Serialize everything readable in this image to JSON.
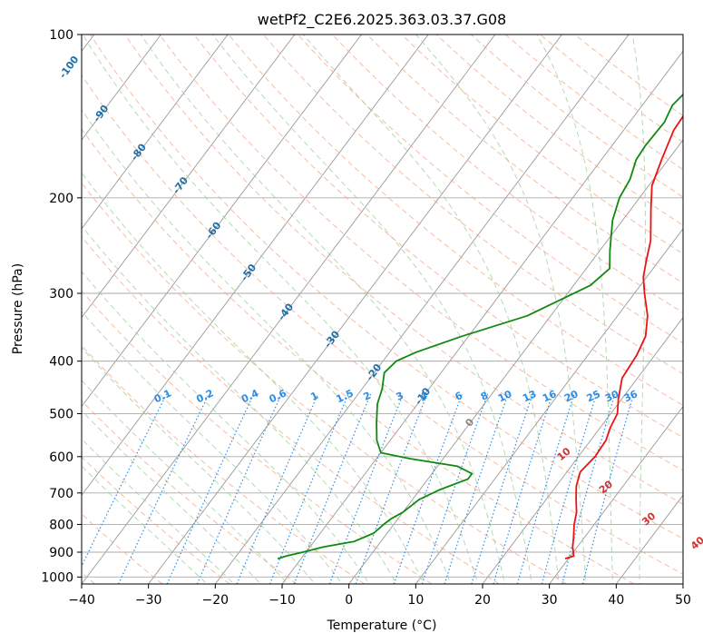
{
  "chart_data": {
    "type": "skew-t",
    "title": "wetPf2_C2E6.2025.363.03.37.G08",
    "xlabel": "Temperature (°C)",
    "ylabel": "Pressure (hPa)",
    "xlim": [
      -40,
      50
    ],
    "ylim": [
      1030,
      100
    ],
    "x_ticks": [
      -40,
      -30,
      -20,
      -10,
      0,
      10,
      20,
      30,
      40,
      50
    ],
    "y_ticks": [
      100,
      200,
      300,
      400,
      500,
      600,
      700,
      800,
      900,
      1000
    ],
    "grid": true,
    "colors": {
      "temperature": "#ee1111",
      "dewpoint": "#118811",
      "isotherm": "#999999",
      "dry_adiabat": "#f4a582",
      "moist_adiabat": "#9ccc9c",
      "mixing_ratio": "#2a8ee8",
      "moist_label": "#1f6fa8",
      "dry_label": "#d33030",
      "dry_label_zero": "#888888",
      "mixing_label": "#2a8ee8"
    },
    "temperature_profile": [
      [
        100,
        2.5
      ],
      [
        105,
        -1
      ],
      [
        110,
        -2.5
      ],
      [
        125,
        -3
      ],
      [
        150,
        -2.5
      ],
      [
        170,
        -1
      ],
      [
        190,
        0.5
      ],
      [
        210,
        3
      ],
      [
        240,
        6.5
      ],
      [
        260,
        8
      ],
      [
        280,
        9.5
      ],
      [
        300,
        11.5
      ],
      [
        330,
        14.5
      ],
      [
        360,
        16.5
      ],
      [
        390,
        17.3
      ],
      [
        430,
        17.7
      ],
      [
        470,
        19.5
      ],
      [
        500,
        21
      ],
      [
        530,
        21.5
      ],
      [
        560,
        22.3
      ],
      [
        600,
        22.5
      ],
      [
        640,
        22
      ],
      [
        680,
        23
      ],
      [
        720,
        24.5
      ],
      [
        760,
        26
      ],
      [
        800,
        27
      ],
      [
        850,
        28.5
      ],
      [
        880,
        29.3
      ],
      [
        900,
        30
      ],
      [
        915,
        30.5
      ],
      [
        925,
        29.5
      ]
    ],
    "dewpoint_profile": [
      [
        100,
        -5
      ],
      [
        110,
        -4.5
      ],
      [
        120,
        -4.5
      ],
      [
        135,
        -5.5
      ],
      [
        145,
        -4.8
      ],
      [
        160,
        -5
      ],
      [
        170,
        -4.8
      ],
      [
        185,
        -3.5
      ],
      [
        200,
        -3
      ],
      [
        220,
        -1.5
      ],
      [
        250,
        1.5
      ],
      [
        270,
        3.5
      ],
      [
        290,
        2.5
      ],
      [
        330,
        -3.5
      ],
      [
        360,
        -11
      ],
      [
        385,
        -16
      ],
      [
        400,
        -18
      ],
      [
        420,
        -18.5
      ],
      [
        450,
        -17
      ],
      [
        480,
        -16
      ],
      [
        520,
        -14
      ],
      [
        560,
        -12
      ],
      [
        590,
        -10
      ],
      [
        605,
        -5
      ],
      [
        625,
        3
      ],
      [
        645,
        6
      ],
      [
        660,
        6
      ],
      [
        690,
        3
      ],
      [
        720,
        1
      ],
      [
        760,
        0
      ],
      [
        780,
        -1
      ],
      [
        800,
        -1.5
      ],
      [
        830,
        -2
      ],
      [
        860,
        -4
      ],
      [
        880,
        -8
      ],
      [
        900,
        -10.5
      ],
      [
        915,
        -12.5
      ],
      [
        925,
        -13.5
      ]
    ],
    "isotherm_labels": [
      "-100",
      "-90",
      "-80",
      "-70",
      "-60",
      "-50",
      "-40",
      "-30",
      "-20",
      "-10",
      "0"
    ],
    "isotherm_label_temps": [
      -100,
      -90,
      -80,
      -70,
      -60,
      -50,
      -40,
      -30,
      -20,
      -10,
      0
    ],
    "isotherm_label_pressures": [
      115,
      140,
      165,
      190,
      230,
      275,
      325,
      365,
      420,
      465,
      520
    ],
    "mixing_ratio_labels": [
      "0.1",
      "0.2",
      "0.4",
      "0.6",
      "1",
      "1.5",
      "2",
      "3",
      "4",
      "6",
      "8",
      "10",
      "13",
      "16",
      "20",
      "25",
      "30",
      "36"
    ],
    "mixing_ratio_values": [
      0.1,
      0.2,
      0.4,
      0.6,
      1,
      1.5,
      2,
      3,
      4,
      6,
      8,
      10,
      13,
      16,
      20,
      25,
      30,
      36
    ],
    "mixing_ratio_label_pressure": 470,
    "dry_adiabat_labels": [
      "10",
      "20",
      "30",
      "40"
    ],
    "dry_adiabat_label_temps": [
      10,
      20,
      30,
      40
    ],
    "dry_adiabat_label_pressures": [
      600,
      690,
      790,
      875
    ]
  }
}
